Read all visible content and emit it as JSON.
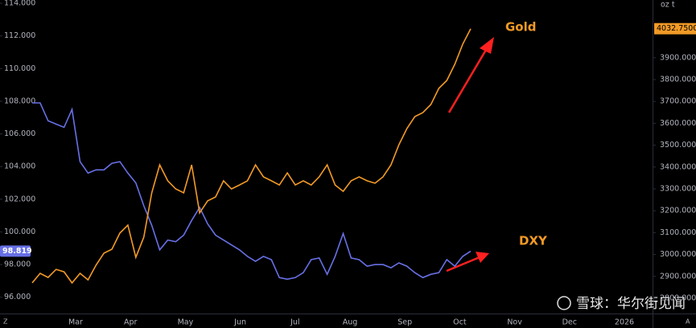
{
  "chart_data": {
    "type": "line",
    "annotations": [
      "Gold",
      "DXY"
    ],
    "unit_label": "oz t",
    "watermark": "雪球：华尔街见闻",
    "corner_labels": [
      "Z",
      "A"
    ],
    "x_axis_labels": [
      "Mar",
      "Apr",
      "May",
      "Jun",
      "Jul",
      "Aug",
      "Sep",
      "Oct",
      "Nov",
      "Dec",
      "2026"
    ],
    "ylim": [
      95,
      114.2
    ],
    "yticks": [
      {
        "value": 96,
        "label": "96.000"
      },
      {
        "value": 98,
        "label": "98.000"
      },
      {
        "value": 100,
        "label": "100.000"
      },
      {
        "value": 102,
        "label": "102.000"
      },
      {
        "value": 104,
        "label": "104.000"
      },
      {
        "value": 106,
        "label": "106.000"
      },
      {
        "value": 108,
        "label": "108.000"
      },
      {
        "value": 110,
        "label": "110.000"
      },
      {
        "value": 112,
        "label": "112.000"
      },
      {
        "value": 114,
        "label": "114.000"
      }
    ],
    "y2lim": [
      2730,
      4164
    ],
    "y2ticks": [
      {
        "value": 2800,
        "label": "2800.0000"
      },
      {
        "value": 2900,
        "label": "2900.0000"
      },
      {
        "value": 3000,
        "label": "3000.0000"
      },
      {
        "value": 3100,
        "label": "3100.0000"
      },
      {
        "value": 3200,
        "label": "3200.0000"
      },
      {
        "value": 3300,
        "label": "3300.0000"
      },
      {
        "value": 3400,
        "label": "3400.0000"
      },
      {
        "value": 3500,
        "label": "3500.0000"
      },
      {
        "value": 3600,
        "label": "3600.0000"
      },
      {
        "value": 3700,
        "label": "3700.0000"
      },
      {
        "value": 3800,
        "label": "3800.0000"
      },
      {
        "value": 3900,
        "label": "3900.0000"
      }
    ],
    "series": [
      {
        "name": "DXY",
        "color": "#6770e6",
        "axis": "y",
        "last_label": "98.819",
        "values": [
          107.9,
          107.9,
          106.8,
          106.6,
          106.4,
          107.5,
          104.3,
          103.6,
          103.8,
          103.8,
          104.2,
          104.3,
          103.6,
          103.0,
          101.6,
          100.4,
          98.9,
          99.5,
          99.4,
          99.8,
          100.7,
          101.5,
          100.5,
          99.8,
          99.5,
          99.2,
          98.9,
          98.5,
          98.2,
          98.5,
          98.3,
          97.2,
          97.1,
          97.2,
          97.5,
          98.3,
          98.4,
          97.4,
          98.5,
          99.9,
          98.4,
          98.3,
          97.9,
          98.0,
          98.0,
          97.8,
          98.1,
          97.9,
          97.5,
          97.2,
          97.4,
          97.5,
          98.3,
          97.9,
          98.5,
          98.819
        ]
      },
      {
        "name": "Gold",
        "color": "#f29a26",
        "axis": "y2",
        "last_label": "4032.7500",
        "values": [
          2870,
          2914,
          2895,
          2932,
          2921,
          2870,
          2914,
          2884,
          2951,
          3006,
          3024,
          3098,
          3134,
          2987,
          3079,
          3282,
          3410,
          3337,
          3300,
          3282,
          3410,
          3190,
          3245,
          3263,
          3337,
          3300,
          3318,
          3337,
          3410,
          3355,
          3337,
          3318,
          3373,
          3318,
          3337,
          3318,
          3355,
          3410,
          3318,
          3289,
          3337,
          3355,
          3337,
          3326,
          3355,
          3410,
          3502,
          3576,
          3631,
          3649,
          3686,
          3760,
          3796,
          3870,
          3962,
          4032.75
        ]
      }
    ]
  }
}
